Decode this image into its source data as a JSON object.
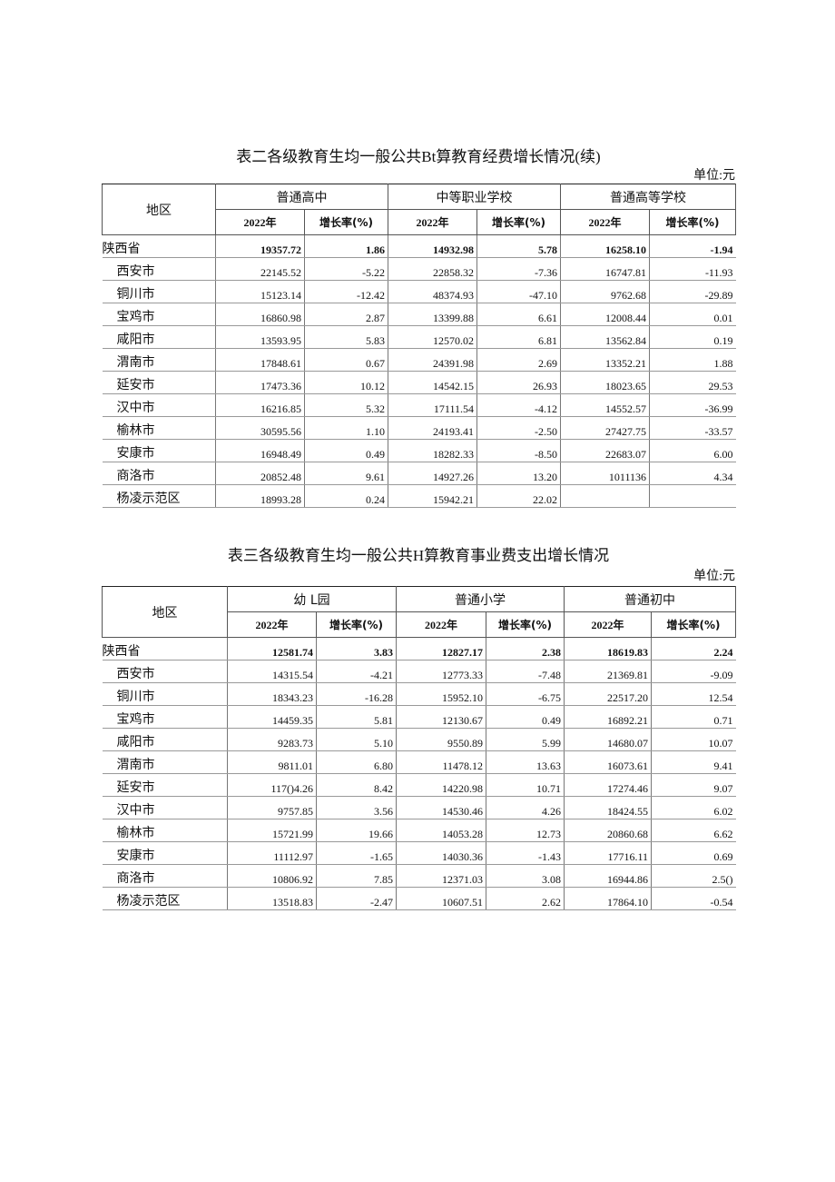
{
  "tables": [
    {
      "title": "表二各级教育生均一般公共Bt算教育经费增长情况(续)",
      "unit": "单位:元",
      "region_header": "地区",
      "groups": [
        {
          "name": "普通高中",
          "year": "2022年",
          "rate": "增长率(%)"
        },
        {
          "name": "中等职业学校",
          "year": "2022年",
          "rate": "增长率(%)"
        },
        {
          "name": "普通高等学校",
          "year": "2022年",
          "rate": "增长率(%)"
        }
      ],
      "rows": [
        [
          "陕西省",
          "19357.72",
          "1.86",
          "14932.98",
          "5.78",
          "16258.10",
          "-1.94"
        ],
        [
          "西安市",
          "22145.52",
          "-5.22",
          "22858.32",
          "-7.36",
          "16747.81",
          "-11.93"
        ],
        [
          "铜川市",
          "15123.14",
          "-12.42",
          "48374.93",
          "-47.10",
          "9762.68",
          "-29.89"
        ],
        [
          "宝鸡市",
          "16860.98",
          "2.87",
          "13399.88",
          "6.61",
          "12008.44",
          "0.01"
        ],
        [
          "咸阳市",
          "13593.95",
          "5.83",
          "12570.02",
          "6.81",
          "13562.84",
          "0.19"
        ],
        [
          "渭南市",
          "17848.61",
          "0.67",
          "24391.98",
          "2.69",
          "13352.21",
          "1.88"
        ],
        [
          "延安市",
          "17473.36",
          "10.12",
          "14542.15",
          "26.93",
          "18023.65",
          "29.53"
        ],
        [
          "汉中市",
          "16216.85",
          "5.32",
          "17111.54",
          "-4.12",
          "14552.57",
          "-36.99"
        ],
        [
          "榆林市",
          "30595.56",
          "1.10",
          "24193.41",
          "-2.50",
          "27427.75",
          "-33.57"
        ],
        [
          "安康市",
          "16948.49",
          "0.49",
          "18282.33",
          "-8.50",
          "22683.07",
          "6.00"
        ],
        [
          "商洛市",
          "20852.48",
          "9.61",
          "14927.26",
          "13.20",
          "1011136",
          "4.34"
        ],
        [
          "杨凌示范区",
          "18993.28",
          "0.24",
          "15942.21",
          "22.02"
        ]
      ]
    },
    {
      "title": "表三各级教育生均一般公共H算教育事业费支出增长情况",
      "unit": "单位:元",
      "region_header": "地区",
      "groups": [
        {
          "name": "幼 L园",
          "year": "2022年",
          "rate": "增长率(%)"
        },
        {
          "name": "普通小学",
          "year": "2022年",
          "rate": "增长率(%)"
        },
        {
          "name": "普通初中",
          "year": "2022年",
          "rate": "增长率(%)"
        }
      ],
      "rows": [
        [
          "陕西省",
          "12581.74",
          "3.83",
          "12827.17",
          "2.38",
          "18619.83",
          "2.24"
        ],
        [
          "西安市",
          "14315.54",
          "-4.21",
          "12773.33",
          "-7.48",
          "21369.81",
          "-9.09"
        ],
        [
          "铜川市",
          "18343.23",
          "-16.28",
          "15952.10",
          "-6.75",
          "22517.20",
          "12.54"
        ],
        [
          "宝鸡市",
          "14459.35",
          "5.81",
          "12130.67",
          "0.49",
          "16892.21",
          "0.71"
        ],
        [
          "咸阳市",
          "9283.73",
          "5.10",
          "9550.89",
          "5.99",
          "14680.07",
          "10.07"
        ],
        [
          "渭南市",
          "9811.01",
          "6.80",
          "11478.12",
          "13.63",
          "16073.61",
          "9.41"
        ],
        [
          "延安市",
          "117()4.26",
          "8.42",
          "14220.98",
          "10.71",
          "17274.46",
          "9.07"
        ],
        [
          "汉中市",
          "9757.85",
          "3.56",
          "14530.46",
          "4.26",
          "18424.55",
          "6.02"
        ],
        [
          "榆林市",
          "15721.99",
          "19.66",
          "14053.28",
          "12.73",
          "20860.68",
          "6.62"
        ],
        [
          "安康市",
          "11112.97",
          "-1.65",
          "14030.36",
          "-1.43",
          "17716.11",
          "0.69"
        ],
        [
          "商洛市",
          "10806.92",
          "7.85",
          "12371.03",
          "3.08",
          "16944.86",
          "2.5()"
        ],
        [
          "杨凌示范区",
          "13518.83",
          "-2.47",
          "10607.51",
          "2.62",
          "17864.10",
          "-0.54"
        ]
      ]
    }
  ]
}
